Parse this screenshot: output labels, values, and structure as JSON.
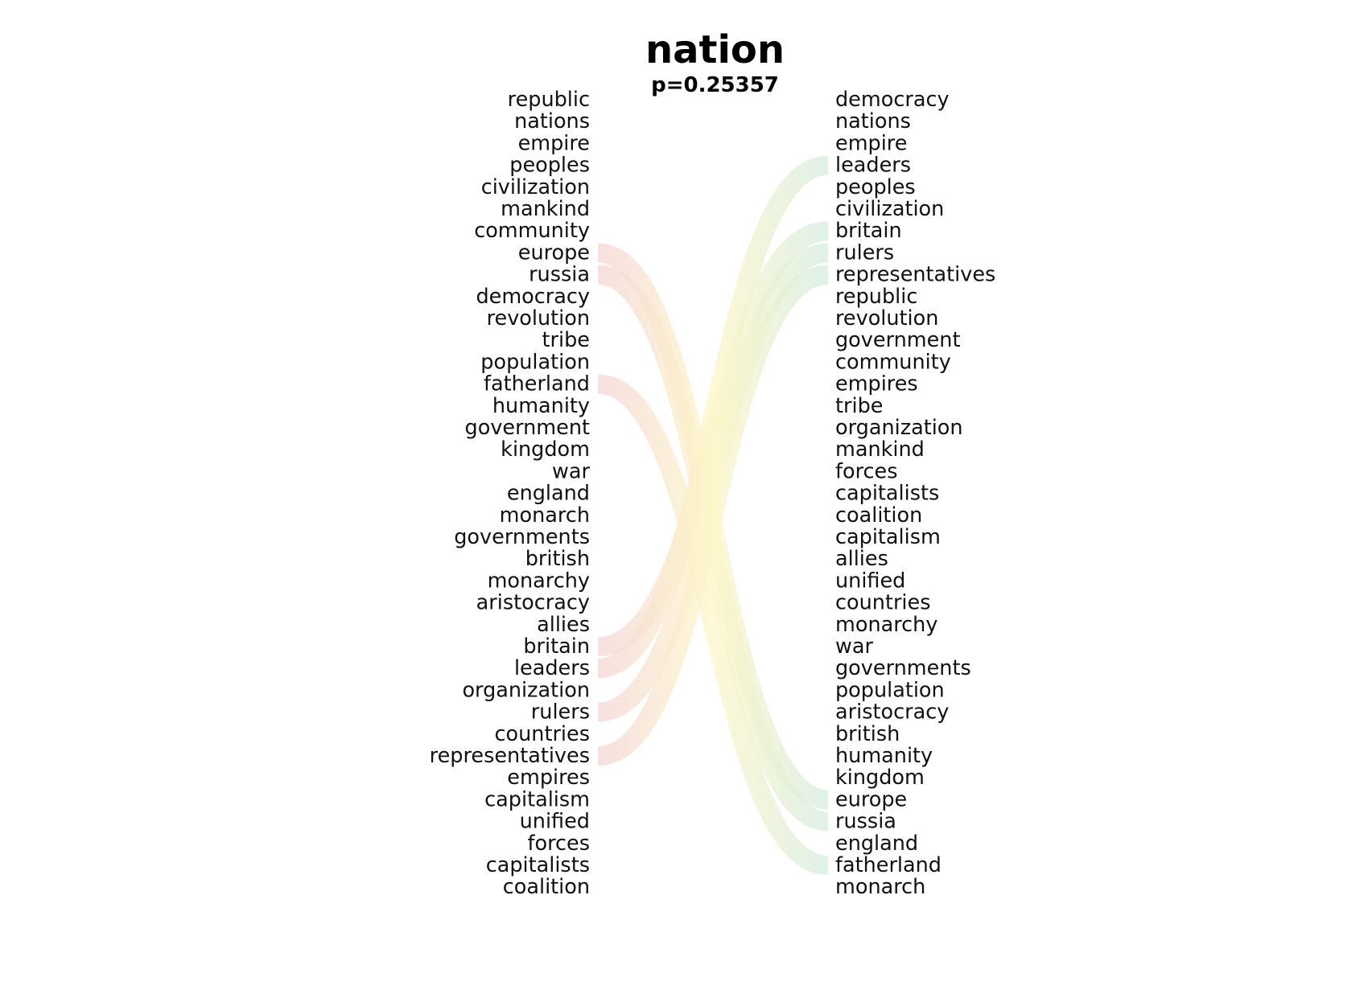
{
  "colors": {
    "left_ribbon": "#f4d6d6",
    "right_ribbon": "#d6ecdf",
    "mid_ribbon": "#fdf6c8",
    "text": "#111111"
  },
  "chart_data": {
    "type": "slope",
    "title": "nation",
    "subtitle": "p=0.25357",
    "left": [
      "republic",
      "nations",
      "empire",
      "peoples",
      "civilization",
      "mankind",
      "community",
      "europe",
      "russia",
      "democracy",
      "revolution",
      "tribe",
      "population",
      "fatherland",
      "humanity",
      "government",
      "kingdom",
      "war",
      "england",
      "monarch",
      "governments",
      "british",
      "monarchy",
      "aristocracy",
      "allies",
      "britain",
      "leaders",
      "organization",
      "rulers",
      "countries",
      "representatives",
      "empires",
      "capitalism",
      "unified",
      "forces",
      "capitalists",
      "coalition"
    ],
    "right": [
      "democracy",
      "nations",
      "empire",
      "leaders",
      "peoples",
      "civilization",
      "britain",
      "rulers",
      "representatives",
      "republic",
      "revolution",
      "government",
      "community",
      "empires",
      "tribe",
      "organization",
      "mankind",
      "forces",
      "capitalists",
      "coalition",
      "capitalism",
      "allies",
      "unified",
      "countries",
      "monarchy",
      "war",
      "governments",
      "population",
      "aristocracy",
      "british",
      "humanity",
      "kingdom",
      "europe",
      "russia",
      "england",
      "fatherland",
      "monarch"
    ],
    "highlighted_links": [
      {
        "word": "europe",
        "left_rank": 8,
        "right_rank": 33
      },
      {
        "word": "russia",
        "left_rank": 9,
        "right_rank": 34
      },
      {
        "word": "fatherland",
        "left_rank": 14,
        "right_rank": 36
      },
      {
        "word": "britain",
        "left_rank": 26,
        "right_rank": 7
      },
      {
        "word": "leaders",
        "left_rank": 27,
        "right_rank": 4
      },
      {
        "word": "rulers",
        "left_rank": 29,
        "right_rank": 8
      },
      {
        "word": "representatives",
        "left_rank": 31,
        "right_rank": 9
      }
    ]
  }
}
